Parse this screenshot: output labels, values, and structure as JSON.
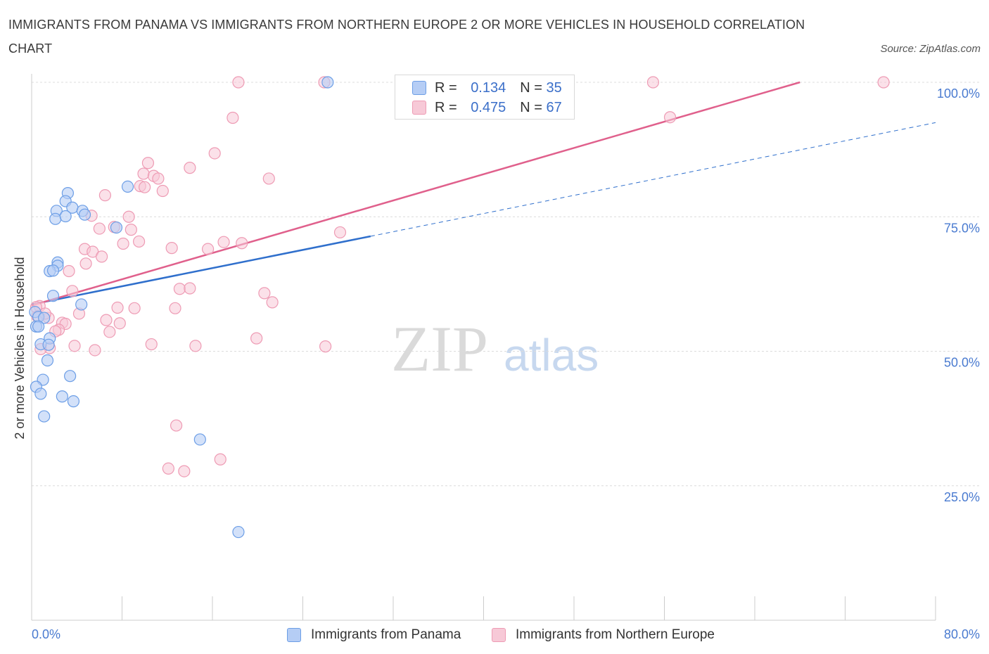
{
  "header": {
    "title": "IMMIGRANTS FROM PANAMA VS IMMIGRANTS FROM NORTHERN EUROPE 2 OR MORE VEHICLES IN HOUSEHOLD CORRELATION CHART",
    "source": "Source: ZipAtlas.com"
  },
  "watermark": {
    "zip": "ZIP",
    "atlas": "atlas"
  },
  "legend_top": {
    "r_label": "R =",
    "n_label": "N =",
    "rows": [
      {
        "r": "0.134",
        "n": "35"
      },
      {
        "r": "0.475",
        "n": "67"
      }
    ]
  },
  "colors": {
    "panama": "#6c9ee6",
    "panama_fill": "#b5cdf5",
    "panama_line": "#2f6fcc",
    "northern_europe": "#ee9bb4",
    "northern_europe_fill": "#f7c9d7",
    "northern_europe_line": "#e0608c",
    "tick_text": "#4a7bd0",
    "grid": "#dcdcdc"
  },
  "chart_data": {
    "type": "scatter",
    "title": "IMMIGRANTS FROM PANAMA VS IMMIGRANTS FROM NORTHERN EUROPE 2 OR MORE VEHICLES IN HOUSEHOLD CORRELATION CHART",
    "xlabel": "",
    "ylabel": "2 or more Vehicles in Household",
    "xlim": [
      0,
      80
    ],
    "ylim": [
      0,
      100
    ],
    "x_tick_labels": [
      {
        "value": 0,
        "label": "0.0%"
      },
      {
        "value": 80,
        "label": "80.0%"
      }
    ],
    "y_tick_labels": [
      {
        "value": 25,
        "label": "25.0%"
      },
      {
        "value": 50,
        "label": "50.0%"
      },
      {
        "value": 75,
        "label": "75.0%"
      },
      {
        "value": 100,
        "label": "100.0%"
      }
    ],
    "x_minor_ticks": [
      0,
      8,
      16,
      24,
      32,
      40,
      48,
      56,
      64,
      72,
      80
    ],
    "grid": true,
    "legend_position": "bottom-center",
    "series": [
      {
        "name": "Immigrants from Panama",
        "r": 0.134,
        "n": 35,
        "trend": {
          "x0": 0,
          "y0": 58.7,
          "x1": 80,
          "y1": 92.5,
          "solid_until_x": 30
        },
        "points": [
          [
            26.2,
            100
          ],
          [
            8.5,
            80.6
          ],
          [
            3.2,
            79.4
          ],
          [
            3.0,
            77.9
          ],
          [
            2.2,
            76.1
          ],
          [
            3.6,
            76.7
          ],
          [
            4.5,
            76.1
          ],
          [
            4.7,
            75.4
          ],
          [
            2.1,
            74.6
          ],
          [
            3.0,
            75.1
          ],
          [
            7.5,
            73.0
          ],
          [
            2.3,
            66.5
          ],
          [
            2.3,
            65.9
          ],
          [
            1.6,
            64.9
          ],
          [
            1.9,
            65.0
          ],
          [
            1.9,
            60.3
          ],
          [
            4.4,
            58.7
          ],
          [
            0.3,
            57.3
          ],
          [
            0.6,
            56.4
          ],
          [
            1.1,
            56.2
          ],
          [
            0.4,
            54.6
          ],
          [
            0.6,
            54.6
          ],
          [
            1.6,
            52.4
          ],
          [
            0.8,
            51.3
          ],
          [
            1.5,
            51.2
          ],
          [
            1.4,
            48.3
          ],
          [
            3.4,
            45.4
          ],
          [
            1.0,
            44.7
          ],
          [
            0.4,
            43.4
          ],
          [
            0.8,
            42.1
          ],
          [
            2.7,
            41.6
          ],
          [
            3.7,
            40.7
          ],
          [
            1.1,
            37.9
          ],
          [
            14.9,
            33.6
          ],
          [
            18.3,
            16.4
          ]
        ]
      },
      {
        "name": "Immigrants from Northern Europe",
        "r": 0.475,
        "n": 67,
        "trend": {
          "x0": 0,
          "y0": 58.5,
          "x1": 68.0,
          "y1": 100
        },
        "points": [
          [
            18.3,
            100
          ],
          [
            25.9,
            100
          ],
          [
            55.0,
            100
          ],
          [
            75.4,
            100
          ],
          [
            17.8,
            93.4
          ],
          [
            56.5,
            93.5
          ],
          [
            16.2,
            86.8
          ],
          [
            10.3,
            85.0
          ],
          [
            14.0,
            84.1
          ],
          [
            9.9,
            83.0
          ],
          [
            10.8,
            82.6
          ],
          [
            11.2,
            82.1
          ],
          [
            21.0,
            82.1
          ],
          [
            9.6,
            80.7
          ],
          [
            10.0,
            80.5
          ],
          [
            11.6,
            79.8
          ],
          [
            6.5,
            79.0
          ],
          [
            5.3,
            75.2
          ],
          [
            8.6,
            75.0
          ],
          [
            7.3,
            73.1
          ],
          [
            6.0,
            72.8
          ],
          [
            8.8,
            72.6
          ],
          [
            27.3,
            72.1
          ],
          [
            9.5,
            70.4
          ],
          [
            8.1,
            70.0
          ],
          [
            17.0,
            70.3
          ],
          [
            18.6,
            70.1
          ],
          [
            12.4,
            69.2
          ],
          [
            15.6,
            69.0
          ],
          [
            4.7,
            69.0
          ],
          [
            5.4,
            68.5
          ],
          [
            6.2,
            67.6
          ],
          [
            4.8,
            66.3
          ],
          [
            3.3,
            64.9
          ],
          [
            13.1,
            61.6
          ],
          [
            14.0,
            61.7
          ],
          [
            3.6,
            61.2
          ],
          [
            20.6,
            60.8
          ],
          [
            21.3,
            59.1
          ],
          [
            7.6,
            58.1
          ],
          [
            9.1,
            58.0
          ],
          [
            12.7,
            58.0
          ],
          [
            4.2,
            57.0
          ],
          [
            0.7,
            58.4
          ],
          [
            0.5,
            56.5
          ],
          [
            1.5,
            56.2
          ],
          [
            6.6,
            55.8
          ],
          [
            7.8,
            55.2
          ],
          [
            2.7,
            55.3
          ],
          [
            3.0,
            55.1
          ],
          [
            2.4,
            54.0
          ],
          [
            6.9,
            53.6
          ],
          [
            2.1,
            53.7
          ],
          [
            19.9,
            52.4
          ],
          [
            10.6,
            51.3
          ],
          [
            14.5,
            51.0
          ],
          [
            26.0,
            50.9
          ],
          [
            3.8,
            51.0
          ],
          [
            1.6,
            50.6
          ],
          [
            5.6,
            50.2
          ],
          [
            0.8,
            50.4
          ],
          [
            12.8,
            36.2
          ],
          [
            16.7,
            29.9
          ],
          [
            12.1,
            28.2
          ],
          [
            13.5,
            27.7
          ],
          [
            0.4,
            58.2
          ],
          [
            1.2,
            57.0
          ]
        ]
      }
    ]
  },
  "legend_bottom": {
    "items": [
      "Immigrants from Panama",
      "Immigrants from Northern Europe"
    ]
  }
}
